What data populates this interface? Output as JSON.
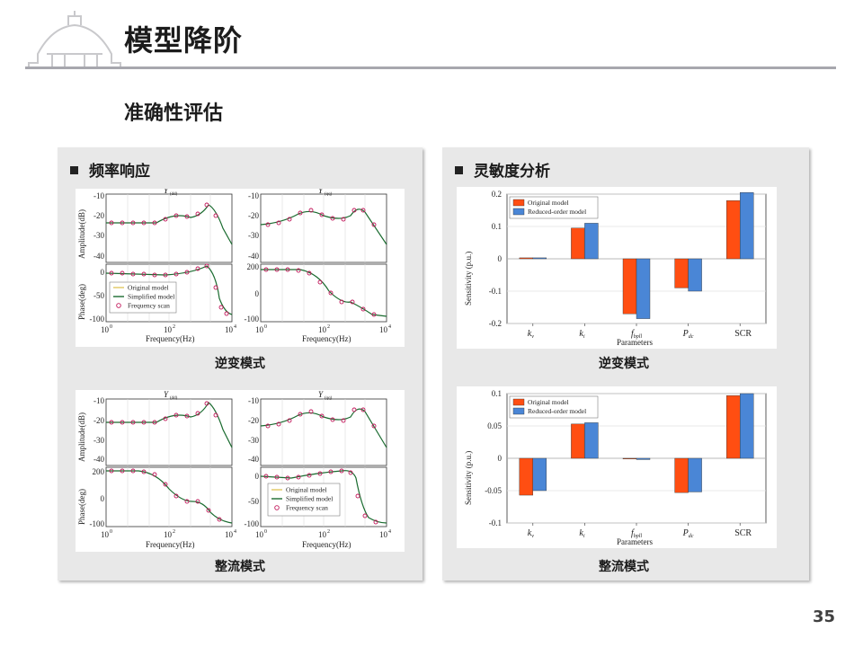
{
  "header": {
    "title": "模型降阶",
    "subtitle": "准确性评估"
  },
  "page_number": "35",
  "left_panel": {
    "heading": "频率响应",
    "caption_top": "逆变模式",
    "caption_bottom": "整流模式",
    "plot_labels": {
      "amp_ylabel": "Amplitude(dB)",
      "phase_ylabel": "Phase(deg)",
      "xlabel": "Frequency(Hz)",
      "amp_ticks": [
        "-10",
        "-20",
        "-30",
        "-40"
      ],
      "phase_ticks_a": [
        "0",
        "-50",
        "-100"
      ],
      "phase_ticks_b": [
        "200",
        "0",
        "-100"
      ],
      "x_ticks": [
        "10",
        "0",
        "10",
        "2",
        "10",
        "4"
      ],
      "legend": [
        "Original model",
        "Simplified model",
        "Frequency scan"
      ],
      "titles_top": [
        "Y",
        "(dd)",
        "Y",
        "(qq)"
      ],
      "titles_bottom": [
        "Y",
        "(dd)",
        "Y",
        "(qq)"
      ]
    }
  },
  "right_panel": {
    "heading": "灵敏度分析",
    "caption_top": "逆变模式",
    "caption_bottom": "整流模式"
  },
  "colors": {
    "original": "#ff4e12",
    "reduced": "#4a86d6",
    "frequency_scan": "#c2185b",
    "simplified": "#1a6b2f"
  },
  "chart_data": [
    {
      "type": "bar",
      "panel": "逆变模式",
      "categories": [
        "k_v",
        "k_i",
        "f_bpll",
        "P_dc",
        "SCR"
      ],
      "series": [
        {
          "name": "Original model",
          "values": [
            0.003,
            0.095,
            -0.17,
            -0.09,
            0.18
          ]
        },
        {
          "name": "Reduced-order model",
          "values": [
            0.003,
            0.11,
            -0.185,
            -0.1,
            0.205
          ]
        }
      ],
      "ylabel": "Sensitivity (p.u.)",
      "xlabel": "Parameters",
      "ylim": [
        -0.2,
        0.2
      ],
      "yticks": [
        "0.2",
        "0.1",
        "0",
        "-0.1",
        "-0.2"
      ],
      "legend_position": "top-left",
      "grid": true
    },
    {
      "type": "bar",
      "panel": "整流模式",
      "categories": [
        "k_v",
        "k_i",
        "f_bpll",
        "P_dc",
        "SCR"
      ],
      "series": [
        {
          "name": "Original model",
          "values": [
            -0.057,
            0.053,
            0.0,
            -0.053,
            0.097
          ]
        },
        {
          "name": "Reduced-order model",
          "values": [
            -0.05,
            0.055,
            -0.002,
            -0.052,
            0.1
          ]
        }
      ],
      "ylabel": "Sensitivity (p.u.)",
      "xlabel": "Parameters",
      "ylim": [
        -0.1,
        0.1
      ],
      "yticks": [
        "0.1",
        "0.05",
        "0",
        "-0.05",
        "-0.1"
      ],
      "legend_position": "top-left",
      "grid": true
    }
  ]
}
